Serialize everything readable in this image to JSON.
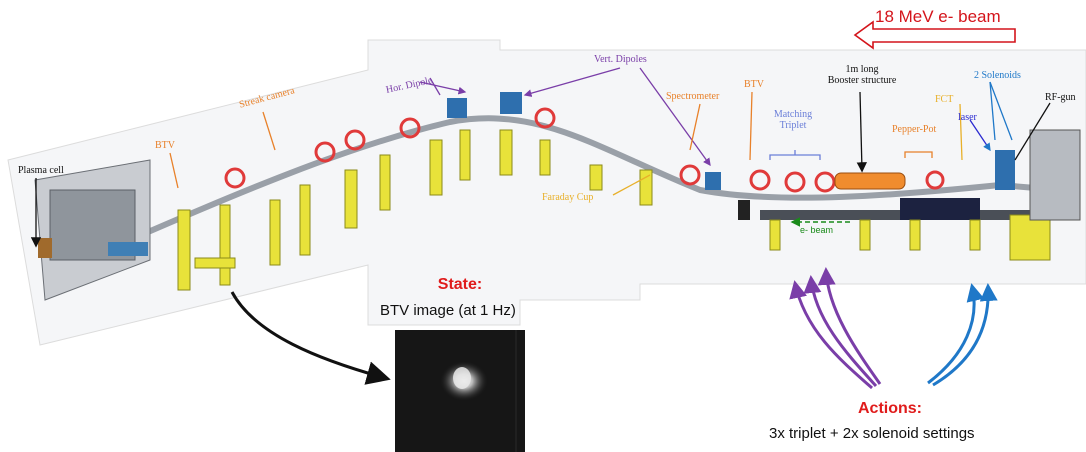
{
  "beam": {
    "label": "18 MeV e- beam"
  },
  "labels": {
    "plasma_cell": "Plasma cell",
    "btv_left": "BTV",
    "streak_camera": "Streak camera",
    "hor_dipole": "Hor. Dipole",
    "vert_dipoles": "Vert. Dipoles",
    "spectrometer": "Spectrometer",
    "faraday_cup": "Faraday Cup",
    "btv_right": "BTV",
    "matching_triplet_line1": "Matching",
    "matching_triplet_line2": "Triplet",
    "booster_line1": "1m long",
    "booster_line2": "Booster structure",
    "pepper_pot": "Pepper-Pot",
    "fct": "FCT",
    "laser": "laser",
    "solenoids": "2 Solenoids",
    "rf_gun": "RF-gun",
    "e_beam": "e- beam"
  },
  "state": {
    "title": "State:",
    "subtitle": "BTV image (at 1 Hz)"
  },
  "actions": {
    "title": "Actions:",
    "subtitle": "3x triplet + 2x solenoid settings"
  },
  "colors": {
    "beam_arrow": "#d4141b",
    "title_red": "#e01b1b",
    "orange_label": "#e8812a",
    "purple": "#7a3ea8",
    "blue": "#1f78c8",
    "yellow_support": "#e8e23a",
    "magnet_red": "#e03a3a",
    "e_beam_green": "#1a8a1a"
  }
}
